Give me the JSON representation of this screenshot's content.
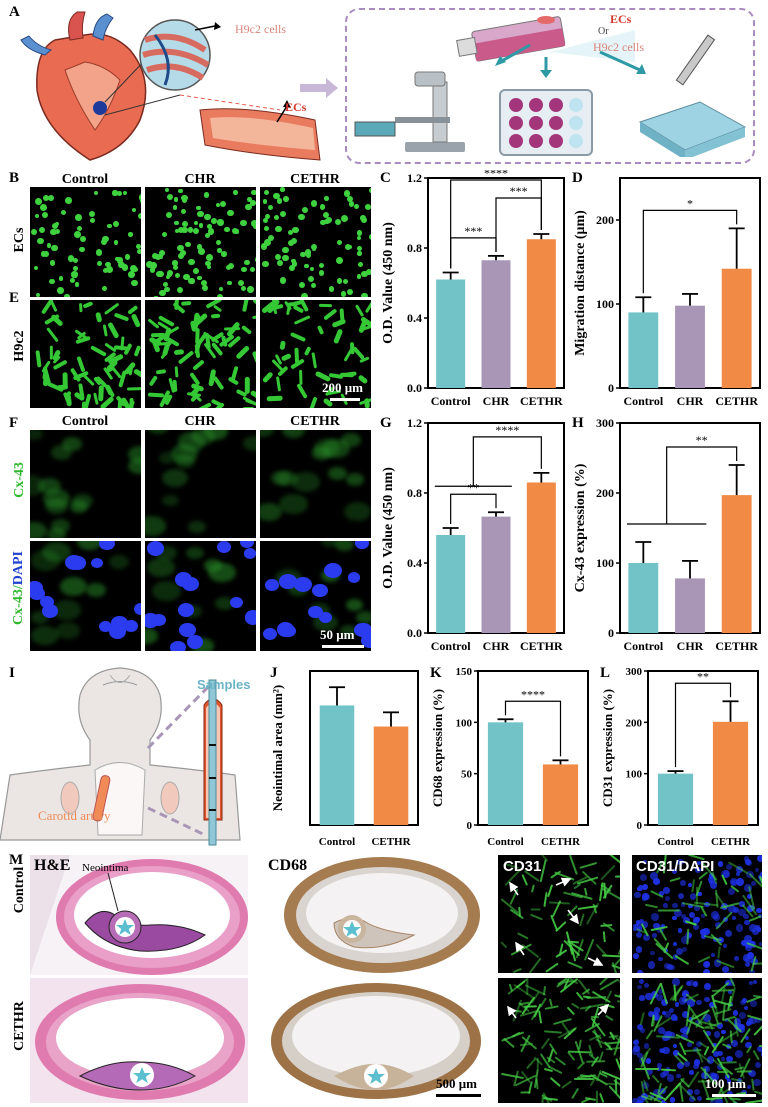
{
  "panel_letters": {
    "A": "A",
    "B": "B",
    "C": "C",
    "D": "D",
    "E": "E",
    "F": "F",
    "G": "G",
    "H": "H",
    "I": "I",
    "J": "J",
    "K": "K",
    "L": "L",
    "M": "M"
  },
  "panelA": {
    "h9c2_label": "H9c2 cells",
    "ecs_label": "ECs",
    "ecs_legend": "ECs",
    "or": "Or",
    "h9c2_legend": "H9c2 cells"
  },
  "microscopy": {
    "col_titles_top": [
      "Control",
      "CHR",
      "CETHR"
    ],
    "row_ecs": "ECs",
    "row_h9c2": "H9c2",
    "scale_200": "200 μm",
    "col_titles_f": [
      "Control",
      "CHR",
      "CETHR"
    ],
    "row_cx43": "Cx-43",
    "row_cx43_dapi_a": "Cx-43/",
    "row_cx43_dapi_b": "DAPI",
    "scale_50": "50 μm"
  },
  "panelI": {
    "samples": "Samples",
    "carotid": "Carotid artery"
  },
  "panelM": {
    "he": "H&E",
    "neointima": "Neointima",
    "cd68": "CD68",
    "cd31": "CD31",
    "cd31dapi": "CD31/DAPI",
    "row_control": "Control",
    "row_cethr": "CETHR",
    "scale_500": "500 μm",
    "scale_100": "100 μm"
  },
  "colors": {
    "control": "#72c3c8",
    "chr": "#a996b6",
    "cethr": "#f08a45"
  },
  "chart_data": [
    {
      "id": "C",
      "type": "bar",
      "categories": [
        "Control",
        "CHR",
        "CETHR"
      ],
      "values": [
        0.62,
        0.73,
        0.85
      ],
      "errors": [
        0.04,
        0.025,
        0.03
      ],
      "ylabel": "O.D. Value (450 nm)",
      "ylim": [
        0,
        1.2
      ],
      "ticks": [
        "0.0",
        "0.4",
        "0.8",
        "1.2"
      ],
      "tickvals": [
        0,
        0.4,
        0.8,
        1.2
      ],
      "sig": [
        {
          "from": 0,
          "to": 1,
          "label": "***"
        },
        {
          "from": 1,
          "to": 2,
          "label": "***"
        },
        {
          "from": 0,
          "to": 2,
          "label": "****"
        }
      ]
    },
    {
      "id": "D",
      "type": "bar",
      "categories": [
        "Control",
        "CHR",
        "CETHR"
      ],
      "values": [
        90,
        98,
        142
      ],
      "errors": [
        18,
        14,
        48
      ],
      "ylabel": "Migration distance (μm)",
      "ylim": [
        0,
        250
      ],
      "ticks": [
        "0",
        "100",
        "200"
      ],
      "tickvals": [
        0,
        100,
        200
      ],
      "sig": [
        {
          "from": 0,
          "to": 2,
          "label": "*"
        }
      ]
    },
    {
      "id": "G",
      "type": "bar",
      "categories": [
        "Control",
        "CHR",
        "CETHR"
      ],
      "values": [
        0.56,
        0.665,
        0.86
      ],
      "errors": [
        0.04,
        0.025,
        0.055
      ],
      "ylabel": "O.D. Value (450 nm)",
      "ylim": [
        0,
        1.2
      ],
      "ticks": [
        "0.0",
        "0.4",
        "0.8",
        "1.2"
      ],
      "tickvals": [
        0,
        0.4,
        0.8,
        1.2
      ],
      "sig": [
        {
          "from": 0,
          "to": 1,
          "label": "**"
        },
        {
          "group": [
            0,
            1
          ],
          "to": 2,
          "label": "****"
        }
      ]
    },
    {
      "id": "H",
      "type": "bar",
      "categories": [
        "Control",
        "CHR",
        "CETHR"
      ],
      "values": [
        100,
        78,
        197
      ],
      "errors": [
        30,
        25,
        43
      ],
      "ylabel": "Cx-43 expression (%)",
      "ylim": [
        0,
        300
      ],
      "ticks": [
        "0",
        "100",
        "200",
        "300"
      ],
      "tickvals": [
        0,
        100,
        200,
        300
      ],
      "sig": [
        {
          "group": [
            0,
            1
          ],
          "to": 2,
          "label": "**"
        }
      ]
    },
    {
      "id": "J",
      "type": "bar",
      "categories": [
        "Control",
        "CETHR"
      ],
      "values": [
        0.295,
        0.243
      ],
      "errors": [
        0.045,
        0.035
      ],
      "ylabel": "Neointimal area (mm²)",
      "ylim": [
        0,
        0.38
      ],
      "ticks": [],
      "tickvals": [],
      "sig": [],
      "colors": [
        "#72c3c8",
        "#f08a45"
      ]
    },
    {
      "id": "K",
      "type": "bar",
      "categories": [
        "Control",
        "CETHR"
      ],
      "values": [
        100,
        59
      ],
      "errors": [
        3,
        4
      ],
      "ylabel": "CD68 expression (%)",
      "ylim": [
        0,
        150
      ],
      "ticks": [
        "0",
        "50",
        "100",
        "150"
      ],
      "tickvals": [
        0,
        50,
        100,
        150
      ],
      "sig": [
        {
          "from": 0,
          "to": 1,
          "label": "****"
        }
      ],
      "colors": [
        "#72c3c8",
        "#f08a45"
      ]
    },
    {
      "id": "L",
      "type": "bar",
      "categories": [
        "Control",
        "CETHR"
      ],
      "values": [
        100,
        201
      ],
      "errors": [
        5,
        40
      ],
      "ylabel": "CD31 expression (%)",
      "ylim": [
        0,
        300
      ],
      "ticks": [
        "0",
        "100",
        "200",
        "300"
      ],
      "tickvals": [
        0,
        100,
        200,
        300
      ],
      "sig": [
        {
          "from": 0,
          "to": 1,
          "label": "**"
        }
      ],
      "colors": [
        "#72c3c8",
        "#f08a45"
      ]
    }
  ]
}
